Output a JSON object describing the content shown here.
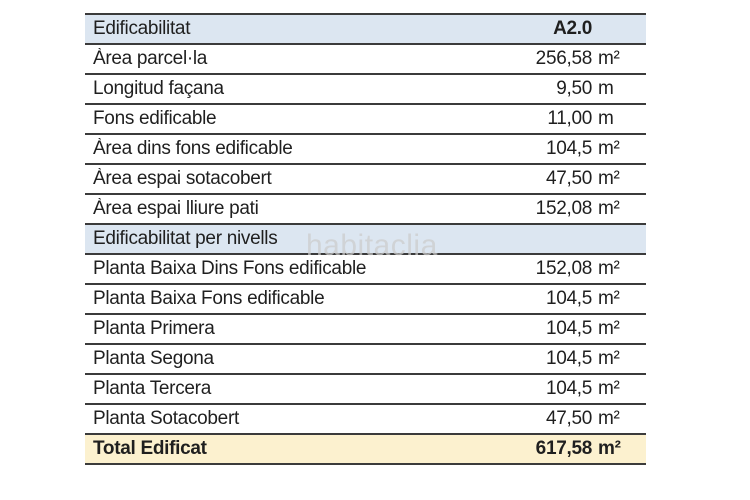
{
  "watermark": {
    "text": "habitaclia"
  },
  "colors": {
    "section_header_bg": "#dce6f1",
    "total_row_bg": "#fcf1cf",
    "border": "#3b3b3b",
    "text": "#1f1f1f",
    "watermark": "#cccccc"
  },
  "table": {
    "rows": [
      {
        "label": "Edificabilitat",
        "value": "A2.0",
        "unit": ""
      },
      {
        "label": "Àrea parcel·la",
        "value": "256,58",
        "unit": "m²"
      },
      {
        "label": "Longitud façana",
        "value": "9,50",
        "unit": "m"
      },
      {
        "label": "Fons edificable",
        "value": "11,00",
        "unit": "m"
      },
      {
        "label": "Àrea dins fons edificable",
        "value": "104,5",
        "unit": "m²"
      },
      {
        "label": "Àrea espai sotacobert",
        "value": "47,50",
        "unit": "m²"
      },
      {
        "label": "Àrea espai lliure pati",
        "value": "152,08",
        "unit": "m²"
      },
      {
        "label": "Edificabilitat per nivells",
        "value": "",
        "unit": ""
      },
      {
        "label": "Planta Baixa Dins Fons edificable",
        "value": "152,08",
        "unit": "m²"
      },
      {
        "label": "Planta Baixa Fons edificable",
        "value": "104,5",
        "unit": "m²"
      },
      {
        "label": "Planta Primera",
        "value": "104,5",
        "unit": "m²"
      },
      {
        "label": "Planta Segona",
        "value": "104,5",
        "unit": "m²"
      },
      {
        "label": "Planta Tercera",
        "value": "104,5",
        "unit": "m²"
      },
      {
        "label": "Planta Sotacobert",
        "value": "47,50",
        "unit": "m²"
      },
      {
        "label": "Total Edificat",
        "value": "617,58",
        "unit": "m²"
      }
    ]
  }
}
